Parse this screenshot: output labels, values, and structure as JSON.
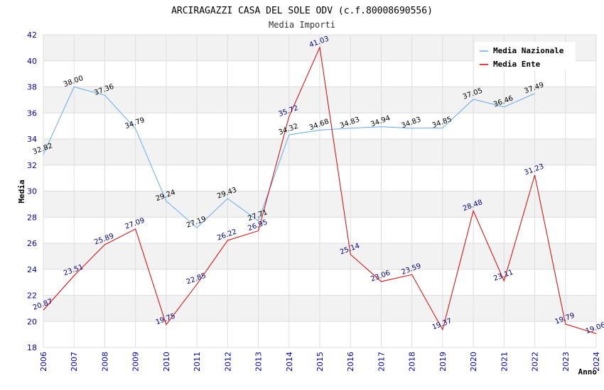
{
  "chart_data": {
    "type": "line",
    "title": "ARCIRAGAZZI CASA DEL SOLE ODV (c.f.80008690556)",
    "subtitle": "Media Importi",
    "xlabel": "Anno",
    "ylabel": "Media",
    "ylim": [
      18,
      42
    ],
    "yticks": [
      "18",
      "20",
      "22",
      "24",
      "26",
      "28",
      "30",
      "32",
      "34",
      "36",
      "38",
      "40",
      "42"
    ],
    "categories": [
      "2006",
      "2007",
      "2008",
      "2009",
      "2010",
      "2011",
      "2012",
      "2013",
      "2014",
      "2015",
      "2016",
      "2017",
      "2018",
      "2019",
      "2020",
      "2021",
      "2022",
      "2023",
      "2024"
    ],
    "grid": true,
    "legend_position": "top-right",
    "series": [
      {
        "name": "Media Nazionale",
        "color": "#66aaee",
        "values": [
          32.82,
          38.0,
          37.36,
          34.79,
          29.24,
          27.19,
          29.43,
          27.71,
          34.32,
          34.68,
          34.83,
          34.94,
          34.83,
          34.85,
          37.05,
          36.46,
          37.49,
          null,
          null
        ],
        "labels": [
          "32.82",
          "38.00",
          "37.36",
          "34.79",
          "29.24",
          "27.19",
          "29.43",
          "27.71",
          "34.32",
          "34.68",
          "34.83",
          "34.94",
          "34.83",
          "34.85",
          "37.05",
          "36.46",
          "37.49",
          "",
          ""
        ]
      },
      {
        "name": "Media Ente",
        "color": "#dd0000",
        "values": [
          20.87,
          23.51,
          25.89,
          27.09,
          19.75,
          22.85,
          26.22,
          26.95,
          35.72,
          41.03,
          25.14,
          23.06,
          23.59,
          19.37,
          28.48,
          23.11,
          31.23,
          19.79,
          19.06
        ],
        "labels": [
          "20.87",
          "23.51",
          "25.89",
          "27.09",
          "19.75",
          "22.85",
          "26.22",
          "26.95",
          "35.72",
          "41.03",
          "25.14",
          "23.06",
          "23.59",
          "19.37",
          "28.48",
          "23.11",
          "31.23",
          "19.79",
          "19.06"
        ]
      }
    ]
  }
}
